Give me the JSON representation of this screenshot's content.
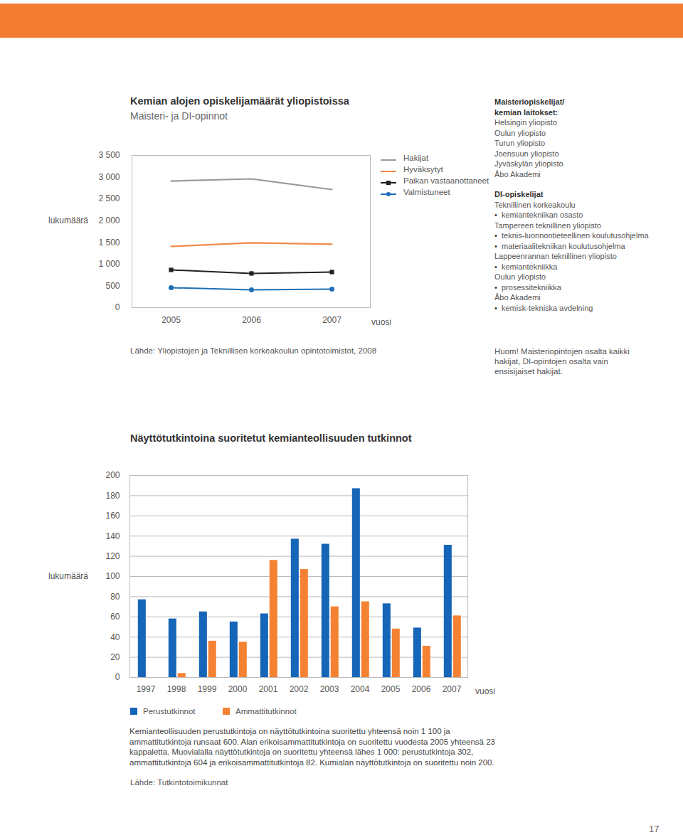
{
  "chart_data": [
    {
      "type": "line",
      "title": "Kemian alojen opiskelijamäärät yliopistoissa",
      "subtitle": "Maisteri- ja DI-opinnot",
      "x_label": "vuosi",
      "y_label": "lukumäärä",
      "categories": [
        "2005",
        "2006",
        "2007"
      ],
      "series": [
        {
          "name": "Hakijat",
          "color": "#9a9a9a",
          "values": [
            2910,
            2960,
            2715
          ]
        },
        {
          "name": "Hyväksytyt",
          "color": "#f08a4b",
          "values": [
            1407,
            1490,
            1457
          ]
        },
        {
          "name": "Paikan vastaanottaneet",
          "color": "#222222",
          "marker": "square",
          "values": [
            867,
            786,
            818
          ]
        },
        {
          "name": "Valmistuneet",
          "color": "#1f6fb5",
          "marker": "circle",
          "values": [
            458,
            409,
            425
          ]
        }
      ],
      "ylim": [
        0,
        3500
      ],
      "yticks": [
        0,
        500,
        {
          "value": 1000,
          "label": "1 000"
        },
        {
          "value": 1500,
          "label": "1 500"
        },
        {
          "value": 2000,
          "label": "2 000"
        },
        {
          "value": 2500,
          "label": "2 500"
        },
        {
          "value": 3000,
          "label": "3 000"
        },
        {
          "value": 3500,
          "label": "3 500"
        }
      ],
      "grid": false,
      "source": "Lähde: Yliopistojen ja Teknillisen korkeakoulun opintotoimistot, 2008",
      "note": "Huom! Maisteriopintojen osalta kaikki hakijat, DI-opintojen osalta vain ensisijaiset hakijat."
    },
    {
      "type": "bar",
      "title": "Näyttötutkintoina suoritetut kemianteollisuuden tutkinnot",
      "x_label": "vuosi",
      "y_label": "lukumäärä",
      "categories": [
        "1997",
        "1998",
        "1999",
        "2000",
        "2001",
        "2002",
        "2003",
        "2004",
        "2005",
        "2006",
        "2007"
      ],
      "series": [
        {
          "name": "Perustutkinnot",
          "color": "#1565b8",
          "values": [
            77,
            58,
            65,
            55,
            63,
            137,
            132,
            187,
            73,
            49,
            131
          ]
        },
        {
          "name": "Ammattitutkinnot",
          "color": "#f58233",
          "values": [
            null,
            4,
            36,
            35,
            116,
            107,
            70,
            75,
            48,
            31,
            61
          ]
        }
      ],
      "ylim": [
        0,
        200
      ],
      "yticks": [
        0,
        20,
        40,
        60,
        80,
        100,
        120,
        140,
        160,
        180,
        200
      ],
      "grid": true,
      "caption": "Kemianteollisuuden perustutkintoja on näyttötutkintoina suoritettu yhteensä noin 1 100 ja ammattitutkintoja runsaat 600. Alan erikoisammattitutkintoja on suoritettu vuodesta 2005 yhteensä 23 kappaletta. Muovialalla näyttötutkintoja on suoritettu yhteensä lähes 1 000: perustutkintoja 302, ammattitutkintoja 604 ja erikoisammattitutkintoja 82. Kumialan näyttötutkintoja on suoritettu noin 200.",
      "source": "Lähde: Tutkintotoimikunnat"
    }
  ],
  "page": {
    "number": "17",
    "departments": {
      "masters_heading": [
        "Maisteriopiskelijat/",
        "kemian laitokset:"
      ],
      "masters": [
        "Helsingin yliopisto",
        "Oulun yliopisto",
        "Turun yliopisto",
        "Joensuun yliopisto",
        "Jyväskylän yliopisto",
        "Åbo Akademi"
      ],
      "di_heading": "DI-opiskelijat",
      "di": [
        {
          "school": "Teknillinen korkeakoulu",
          "programs": [
            "kemiantekniikan osasto"
          ]
        },
        {
          "school": "Tampereen teknillinen yliopisto",
          "programs": [
            "teknis-luonnontieteellinen koulutusohjelma",
            "materiaalitekniikan koulutusohjelma"
          ]
        },
        {
          "school": "Lappeenrannan teknillinen yliopisto",
          "programs": [
            "kemiantekniikka"
          ]
        },
        {
          "school": "Oulun yliopisto",
          "programs": [
            "prosessitekniikka"
          ]
        },
        {
          "school": "Åbo Akademi",
          "programs": [
            "kemisk-tekniska avdelning"
          ]
        }
      ]
    }
  }
}
